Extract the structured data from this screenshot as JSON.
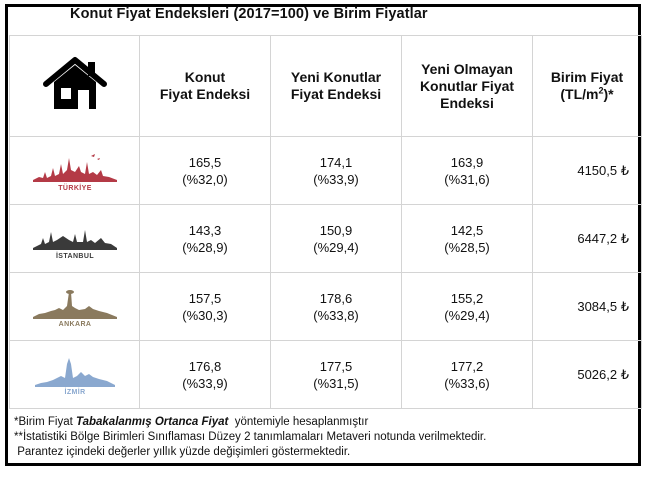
{
  "title": "Konut Fiyat Endeksleri (2017=100) ve Birim Fiyatlar",
  "headers": {
    "col1": [
      "Konut",
      "Fiyat Endeksi"
    ],
    "col2": [
      "Yeni Konutlar",
      "Fiyat Endeksi"
    ],
    "col3": [
      "Yeni Olmayan",
      "Konutlar Fiyat",
      "Endeksi"
    ],
    "col4_line1": "Birim Fiyat",
    "col4_line2_pre": "(TL/m",
    "col4_sup": "2",
    "col4_line2_post": ")*"
  },
  "rows": [
    {
      "city": "TÜRKİYE",
      "color": "#b43a46",
      "v1": "165,5",
      "p1": "(%32,0)",
      "v2": "174,1",
      "p2": "(%33,9)",
      "v3": "163,9",
      "p3": "(%31,6)",
      "price": "4150,5 ₺"
    },
    {
      "city": "İSTANBUL",
      "color": "#3a3a3a",
      "v1": "143,3",
      "p1": "(%28,9)",
      "v2": "150,9",
      "p2": "(%29,4)",
      "v3": "142,5",
      "p3": "(%28,5)",
      "price": "6447,2 ₺"
    },
    {
      "city": "ANKARA",
      "color": "#8a7a5e",
      "v1": "157,5",
      "p1": "(%30,3)",
      "v2": "178,6",
      "p2": "(%33,8)",
      "v3": "155,2",
      "p3": "(%29,4)",
      "price": "3084,5 ₺"
    },
    {
      "city": "İZMİR",
      "color": "#8aa8cf",
      "v1": "176,8",
      "p1": "(%33,9)",
      "v2": "177,5",
      "p2": "(%31,5)",
      "v3": "177,2",
      "p3": "(%33,6)",
      "price": "5026,2 ₺"
    }
  ],
  "notes": {
    "line1_pre": "*Birim Fiyat ",
    "line1_emph": "Tabakalanmış Ortanca Fiyat",
    "line1_post": "  yöntemiyle hesaplanmıştır",
    "line2": "**İstatistiki Bölge Birimleri Sınıflaması Düzey 2 tanımlamaları Metaveri notunda verilmektedir.",
    "line3": " Parantez içindeki değerler yıllık yüzde değişimleri göstermektedir."
  },
  "icons": {
    "header": "house-icon"
  }
}
